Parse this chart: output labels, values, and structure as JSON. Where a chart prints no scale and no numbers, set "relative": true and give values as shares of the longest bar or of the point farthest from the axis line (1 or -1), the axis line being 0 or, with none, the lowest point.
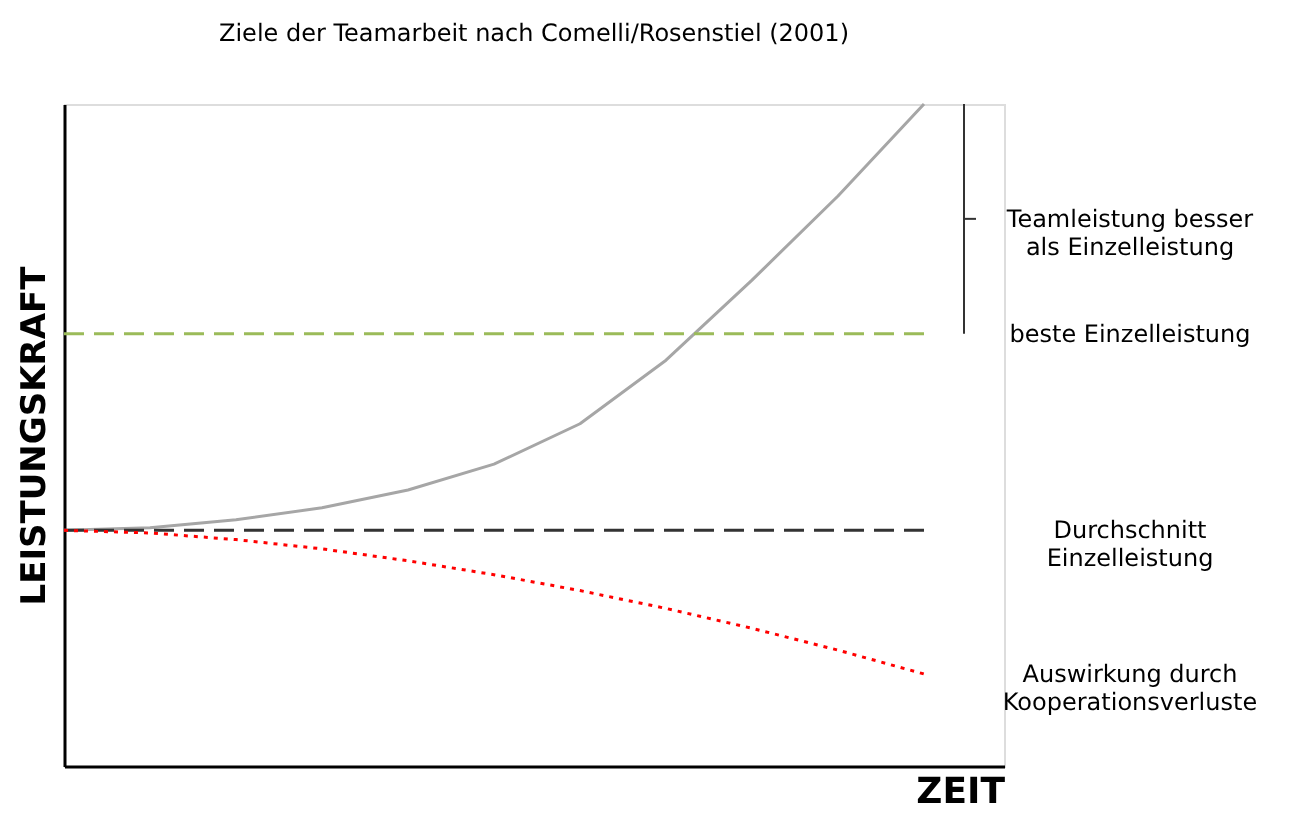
{
  "chart_data": {
    "type": "line",
    "title": "Ziele der Teamarbeit nach Comelli/Rosenstiel (2001)",
    "xlabel": "ZEIT",
    "ylabel": "LEISTUNGSKRAFT",
    "relative": true,
    "grid": false,
    "marker": "none",
    "categories": [
      null,
      null,
      null,
      null,
      null,
      null,
      null,
      null,
      null,
      null,
      null
    ],
    "series": [
      {
        "color": "#a6a6a6",
        "line_style": "solid",
        "values": [
          0.356,
          0.36,
          0.372,
          0.39,
          0.417,
          0.456,
          0.517,
          0.613,
          0.734,
          0.861,
          1
        ]
      },
      {
        "name": "beste Einzelleistung",
        "color": "#9bbb59",
        "line_style": "dashed",
        "values": [
          0.653,
          0.653,
          0.653,
          0.653,
          0.653,
          0.653,
          0.653,
          0.653,
          0.653,
          0.653,
          0.653
        ]
      },
      {
        "name": "Durchschnitt\nEinzelleistung",
        "color": "#333333",
        "line_style": "dashed",
        "values": [
          0.356,
          0.356,
          0.356,
          0.356,
          0.356,
          0.356,
          0.356,
          0.356,
          0.356,
          0.356,
          0.356
        ]
      },
      {
        "name": "Auswirkung durch\nKooperationsverluste",
        "color": "#ff0000",
        "line_style": "dotted",
        "values": [
          0.356,
          0.352,
          0.342,
          0.328,
          0.31,
          0.289,
          0.265,
          0.238,
          0.208,
          0.175,
          0.139
        ]
      }
    ],
    "annotations": [
      "Teamleistung besser\nals Einzelleistung"
    ]
  }
}
